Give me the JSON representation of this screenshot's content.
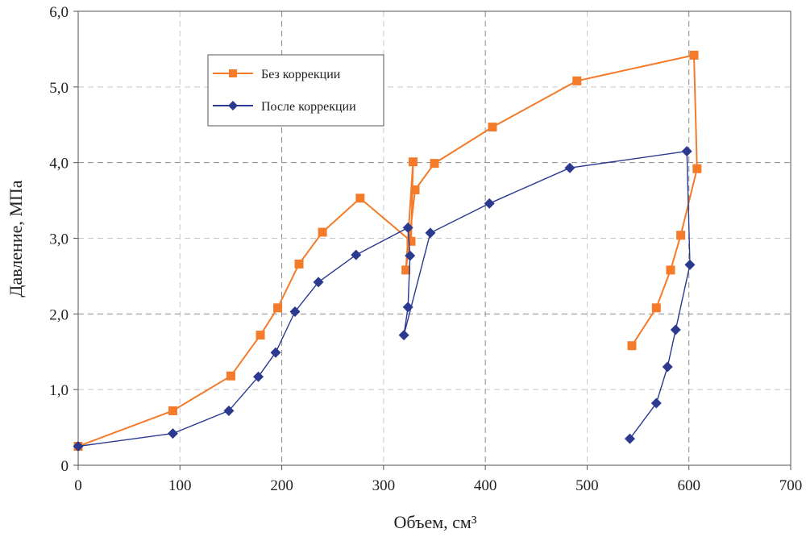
{
  "chart_data": {
    "type": "line",
    "title": "",
    "xlabel": "Объем, см³",
    "ylabel": "Давление, МПа",
    "xlim": [
      0,
      700
    ],
    "ylim": [
      0,
      6
    ],
    "x_ticks": [
      0,
      100,
      200,
      300,
      400,
      500,
      600,
      700
    ],
    "x_tick_labels": [
      "0",
      "100",
      "200",
      "300",
      "400",
      "500",
      "600",
      "700"
    ],
    "y_ticks": [
      0,
      1,
      2,
      3,
      4,
      5,
      6
    ],
    "y_tick_labels": [
      "0",
      "1,0",
      "2,0",
      "3,0",
      "4,0",
      "5,0",
      "6,0"
    ],
    "grid": true,
    "legend_position": "top-left",
    "series": [
      {
        "name": "Без коррекции",
        "color": "#F47B2A",
        "marker": "square",
        "x": [
          0,
          93,
          150,
          179,
          196,
          217,
          240,
          277,
          327,
          329,
          322,
          331,
          350,
          407,
          490,
          605,
          608,
          592,
          582,
          568,
          544
        ],
        "y": [
          0.25,
          0.72,
          1.18,
          1.72,
          2.08,
          2.66,
          3.08,
          3.53,
          2.96,
          4.01,
          2.58,
          3.64,
          3.99,
          4.47,
          5.08,
          5.42,
          3.92,
          3.04,
          2.58,
          2.08,
          1.58
        ]
      },
      {
        "name": "После коррекции",
        "color": "#2B3A8F",
        "marker": "diamond",
        "x": [
          0,
          93,
          148,
          177,
          194,
          213,
          236,
          273,
          324,
          326,
          324,
          320,
          346,
          404,
          483,
          598,
          601,
          587,
          579,
          568,
          542
        ],
        "y": [
          0.25,
          0.42,
          0.72,
          1.17,
          1.49,
          2.03,
          2.42,
          2.78,
          3.14,
          2.77,
          2.09,
          1.72,
          3.07,
          3.46,
          3.93,
          4.15,
          2.65,
          1.79,
          1.3,
          0.82,
          0.35
        ]
      }
    ]
  }
}
